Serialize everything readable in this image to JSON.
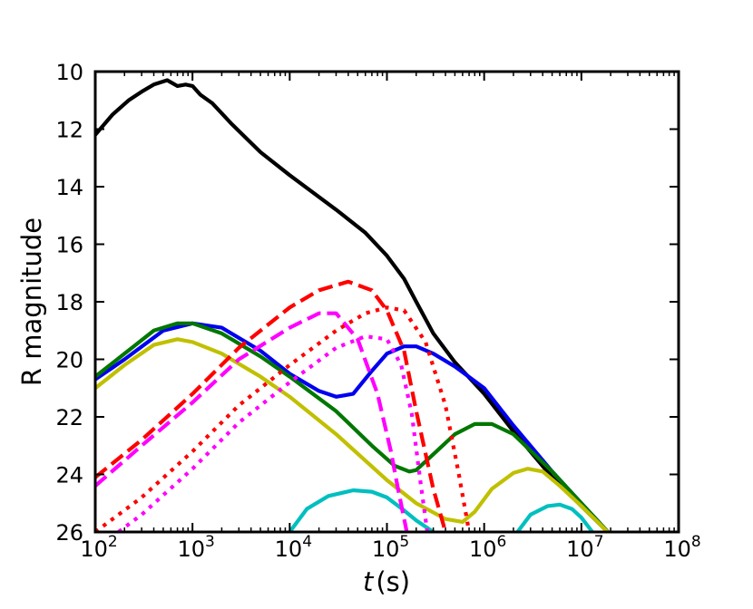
{
  "chart_data": {
    "type": "line",
    "title": "",
    "xlabel_var": "t",
    "xlabel_unit": "(s)",
    "ylabel": "R magnitude",
    "xscale": "log",
    "xlim": [
      100,
      100000000
    ],
    "ylim": [
      26,
      10
    ],
    "x_tick_labels": [
      {
        "base": "10",
        "exp": "2"
      },
      {
        "base": "10",
        "exp": "3"
      },
      {
        "base": "10",
        "exp": "4"
      },
      {
        "base": "10",
        "exp": "5"
      },
      {
        "base": "10",
        "exp": "6"
      },
      {
        "base": "10",
        "exp": "7"
      },
      {
        "base": "10",
        "exp": "8"
      }
    ],
    "y_tick_labels": [
      "10",
      "12",
      "14",
      "16",
      "18",
      "20",
      "22",
      "24",
      "26"
    ],
    "grid": false,
    "legend": "none",
    "series": [
      {
        "name": "black-solid",
        "color": "#000000",
        "dash": "solid",
        "x": [
          100,
          150,
          220,
          300,
          400,
          550,
          700,
          850,
          1000,
          1200,
          1600,
          2500,
          5000,
          10000,
          30000,
          60000,
          100000,
          150000,
          200000,
          300000,
          500000,
          1000000,
          2000000,
          5000000,
          10000000,
          20000000
        ],
        "y": [
          12.2,
          11.5,
          11.0,
          10.7,
          10.45,
          10.3,
          10.5,
          10.45,
          10.5,
          10.8,
          11.1,
          11.8,
          12.8,
          13.6,
          14.8,
          15.6,
          16.4,
          17.2,
          18.0,
          19.1,
          20.1,
          21.2,
          22.5,
          24.1,
          25.1,
          26.1
        ]
      },
      {
        "name": "blue-solid",
        "color": "#0000ee",
        "dash": "solid",
        "x": [
          100,
          200,
          500,
          1000,
          2000,
          5000,
          10000,
          20000,
          30000,
          45000,
          70000,
          100000,
          150000,
          200000,
          300000,
          500000,
          1000000,
          2000000,
          5000000,
          10000000,
          20000000
        ],
        "y": [
          20.7,
          20.0,
          19.0,
          18.75,
          18.9,
          19.7,
          20.5,
          21.1,
          21.3,
          21.2,
          20.4,
          19.8,
          19.55,
          19.55,
          19.8,
          20.25,
          21.0,
          22.3,
          23.9,
          25.0,
          26.1
        ]
      },
      {
        "name": "green-solid",
        "color": "#007700",
        "dash": "solid",
        "x": [
          100,
          200,
          400,
          700,
          1000,
          2000,
          5000,
          10000,
          30000,
          70000,
          120000,
          170000,
          200000,
          300000,
          500000,
          800000,
          1200000,
          2000000,
          5000000,
          10000000,
          20000000
        ],
        "y": [
          20.6,
          19.8,
          19.0,
          18.75,
          18.75,
          19.1,
          19.9,
          20.6,
          21.8,
          23.0,
          23.7,
          23.9,
          23.85,
          23.3,
          22.6,
          22.25,
          22.25,
          22.6,
          23.9,
          25.0,
          26.1
        ]
      },
      {
        "name": "yellow-solid",
        "color": "#c0c000",
        "dash": "solid",
        "x": [
          100,
          200,
          400,
          700,
          1000,
          2000,
          5000,
          10000,
          30000,
          100000,
          200000,
          400000,
          600000,
          800000,
          1200000,
          2000000,
          2800000,
          4000000,
          6000000,
          10000000,
          20000000
        ],
        "y": [
          21.0,
          20.2,
          19.5,
          19.3,
          19.4,
          19.8,
          20.6,
          21.3,
          22.6,
          24.2,
          25.0,
          25.55,
          25.65,
          25.3,
          24.5,
          23.95,
          23.8,
          23.9,
          24.4,
          25.1,
          26.1
        ]
      },
      {
        "name": "cyan-solid",
        "color": "#00bfbf",
        "dash": "solid",
        "x": [
          10000,
          15000,
          25000,
          45000,
          70000,
          100000,
          150000,
          200000,
          300000
        ],
        "y": [
          26.0,
          25.2,
          24.75,
          24.55,
          24.6,
          24.8,
          25.25,
          25.6,
          26.0
        ]
      },
      {
        "name": "cyan-solid-2",
        "color": "#00bfbf",
        "dash": "solid",
        "x": [
          2200000,
          3000000,
          4500000,
          6000000,
          8000000,
          10000000,
          13000000
        ],
        "y": [
          26.0,
          25.4,
          25.1,
          25.05,
          25.2,
          25.5,
          26.0
        ]
      },
      {
        "name": "red-dashed",
        "color": "#ff0000",
        "dash": "dashed",
        "x": [
          100,
          300,
          1000,
          3000,
          10000,
          20000,
          40000,
          70000,
          100000,
          150000,
          200000,
          300000,
          400000
        ],
        "y": [
          24.1,
          22.8,
          21.2,
          19.6,
          18.2,
          17.6,
          17.3,
          17.6,
          18.3,
          19.7,
          21.8,
          24.5,
          26.0
        ]
      },
      {
        "name": "magenta-dashed",
        "color": "#ff00ff",
        "dash": "dashed",
        "x": [
          100,
          300,
          1000,
          3000,
          10000,
          20000,
          30000,
          50000,
          80000,
          110000,
          130000,
          160000
        ],
        "y": [
          24.4,
          23.0,
          21.5,
          20.0,
          18.9,
          18.4,
          18.4,
          19.3,
          21.2,
          23.2,
          24.5,
          26.0
        ]
      },
      {
        "name": "red-dotted",
        "color": "#ff0000",
        "dash": "dotted",
        "x": [
          100,
          300,
          1000,
          3000,
          10000,
          30000,
          60000,
          100000,
          150000,
          250000,
          400000,
          550000,
          700000
        ],
        "y": [
          26.0,
          24.8,
          23.2,
          21.6,
          20.2,
          19.0,
          18.4,
          18.2,
          18.3,
          19.4,
          21.6,
          24.0,
          26.0
        ]
      },
      {
        "name": "magenta-dotted",
        "color": "#ff00ff",
        "dash": "dotted",
        "x": [
          100,
          300,
          1000,
          3000,
          10000,
          30000,
          60000,
          100000,
          140000,
          180000,
          220000,
          260000
        ],
        "y": [
          26.6,
          25.4,
          23.8,
          22.2,
          20.8,
          19.6,
          19.2,
          19.3,
          20.2,
          21.9,
          24.2,
          26.0
        ]
      }
    ]
  }
}
